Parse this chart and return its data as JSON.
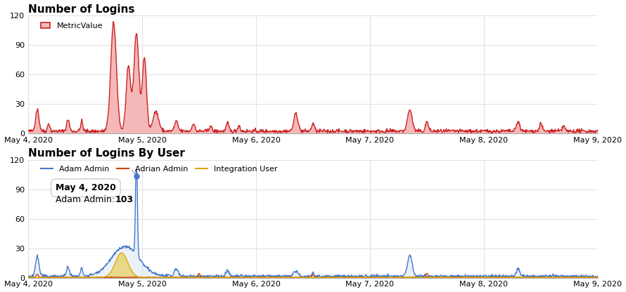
{
  "title1": "Number of Logins",
  "title2": "Number of Logins By User",
  "legend1": "MetricValue",
  "legend2_1": "Adam Admin",
  "legend2_2": "Adrian Admin",
  "legend2_3": "Integration User",
  "color_red": "#cc2222",
  "color_fill_red": "#f5b8b8",
  "color_blue": "#4477cc",
  "color_fill_blue": "#c8d8f0",
  "color_orange_admin": "#cc4400",
  "color_gold": "#ddaa00",
  "ylim1": [
    0,
    120
  ],
  "ylim2": [
    0,
    120
  ],
  "yticks": [
    0,
    30,
    60,
    90,
    120
  ],
  "xtick_labels": [
    "May 4, 2020",
    "May 5, 2020",
    "May 6, 2020",
    "May 7, 2020",
    "May 8, 2020",
    "May 9, 2020"
  ],
  "bg_color": "#ffffff",
  "grid_color": "#e0e0e0",
  "tooltip_date": "May 4, 2020",
  "tooltip_user": "Adam Admin",
  "tooltip_value": "103"
}
